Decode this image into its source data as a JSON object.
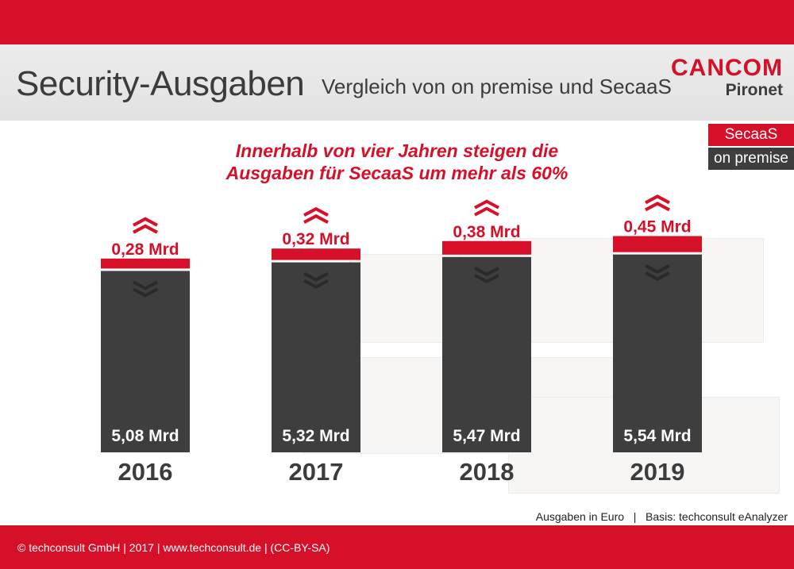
{
  "header": {
    "title": "Security-Ausgaben",
    "subtitle": "Vergleich von on premise und SecaaS"
  },
  "logo": {
    "main": "CANCOM",
    "sub": "Pironet"
  },
  "legend": {
    "secaas": "SecaaS",
    "on_premise": "on premise"
  },
  "headline": {
    "line1": "Innerhalb von vier Jahren steigen die",
    "line2": "Ausgaben für SecaaS um mehr als 60%"
  },
  "source": "Ausgaben in Euro   |   Basis: techconsult eAnalyzer",
  "footer": "© techconsult GmbH | 2017 | www.techconsult.de | (CC-BY-SA)",
  "colors": {
    "secaas": "#d7102a",
    "on_premise": "#3e3e3e",
    "arrow_up": "#d7102a",
    "arrow_down": "#2a2a2a"
  },
  "icons": {
    "up": "double-chevron-up-icon",
    "down": "double-chevron-down-icon"
  },
  "chart_data": {
    "type": "bar",
    "stacked": true,
    "unit": "Mrd",
    "categories": [
      "2016",
      "2017",
      "2018",
      "2019"
    ],
    "series": [
      {
        "name": "on premise",
        "values": [
          5.08,
          5.32,
          5.47,
          5.54
        ],
        "labels": [
          "5,08 Mrd",
          "5,32 Mrd",
          "5,47 Mrd",
          "5,54 Mrd"
        ]
      },
      {
        "name": "SecaaS",
        "values": [
          0.28,
          0.32,
          0.38,
          0.45
        ],
        "labels": [
          "0,28 Mrd",
          "0,32 Mrd",
          "0,38 Mrd",
          "0,45 Mrd"
        ]
      }
    ],
    "legend": "top-right",
    "grid": false
  }
}
